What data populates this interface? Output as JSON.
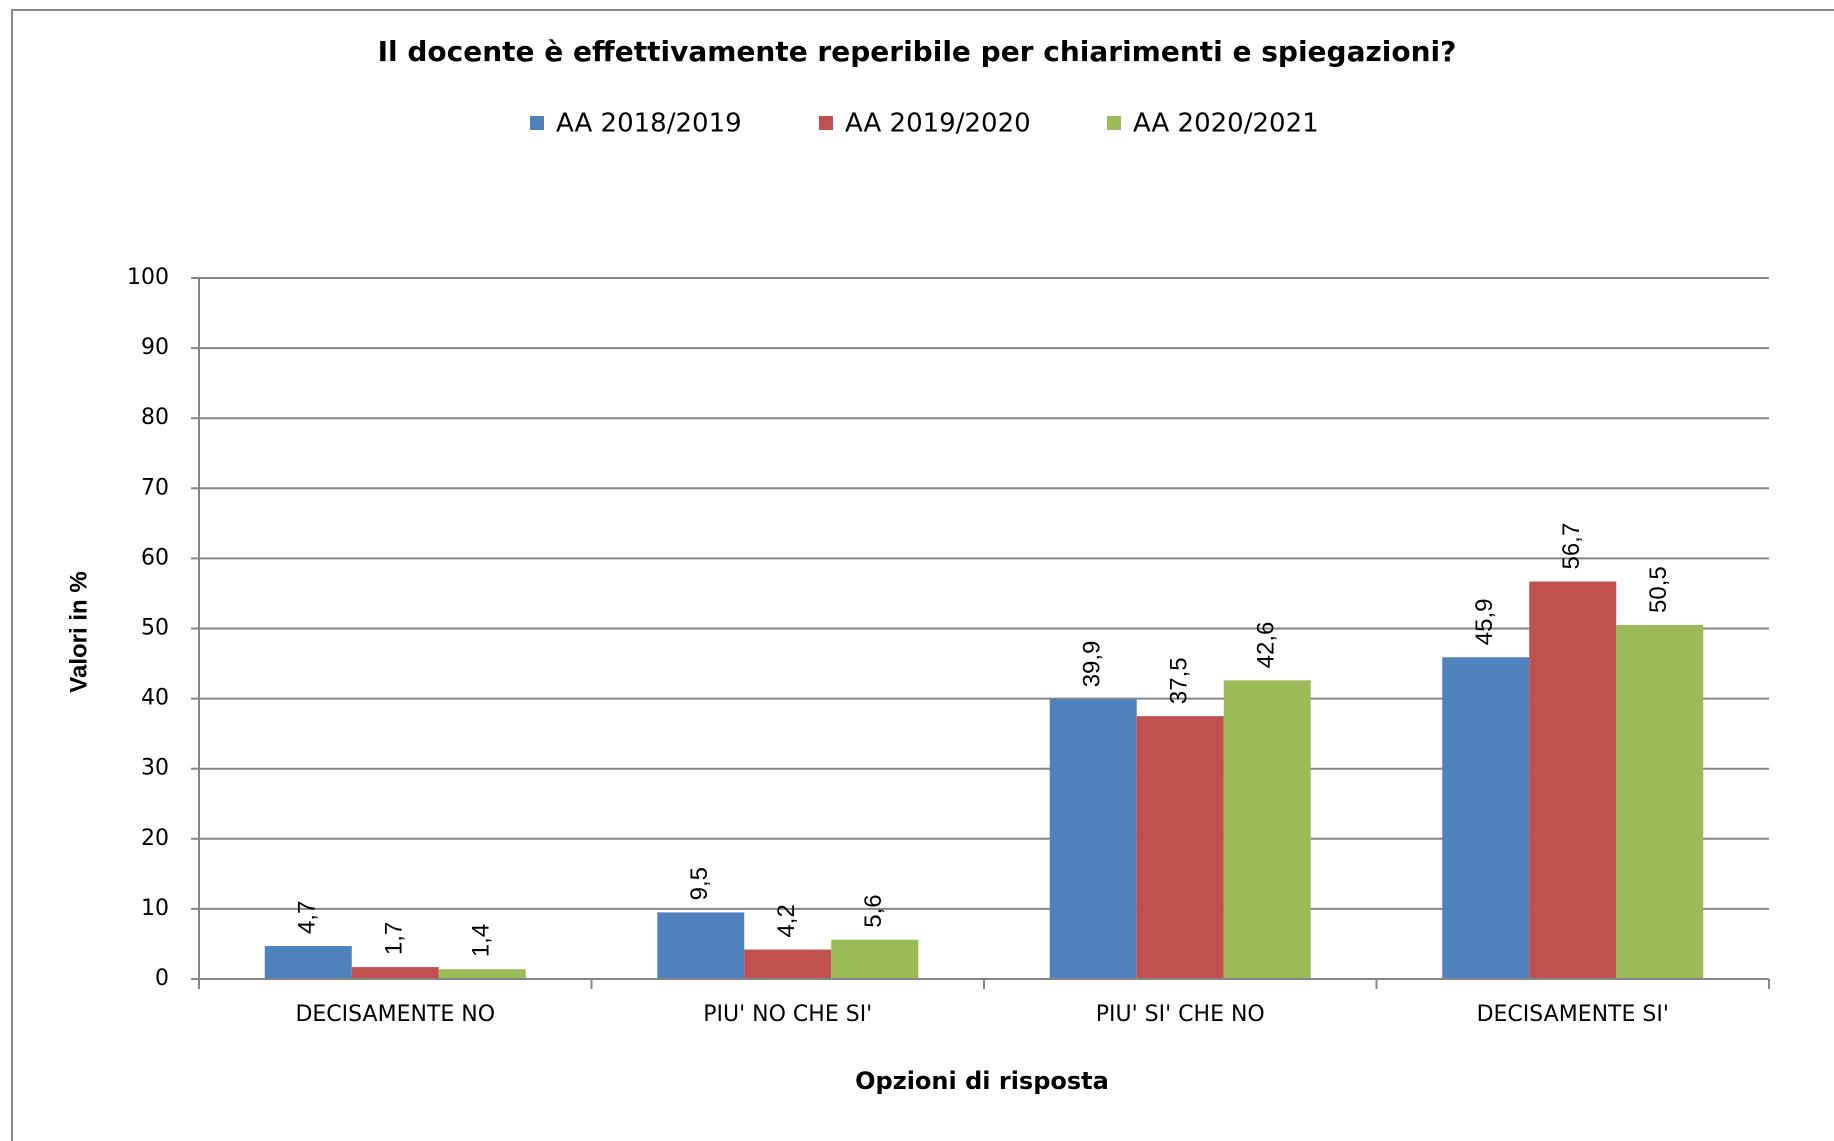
{
  "chart_data": {
    "type": "bar",
    "title": "Il docente è effettivamente reperibile per chiarimenti e spiegazioni?",
    "x_label": "Opzioni di risposta",
    "y_label": "Valori in %",
    "categories": [
      "DECISAMENTE NO",
      "PIU' NO CHE SI'",
      "PIU' SI' CHE NO",
      "DECISAMENTE SI'"
    ],
    "series": [
      {
        "name": "AA 2018/2019",
        "color": "#4f81bd",
        "values": [
          4.7,
          9.5,
          39.9,
          45.9
        ],
        "value_labels": [
          "4,7",
          "9,5",
          "39,9",
          "45,9"
        ]
      },
      {
        "name": "AA 2019/2020",
        "color": "#c0504d",
        "values": [
          1.7,
          4.2,
          37.5,
          56.7
        ],
        "value_labels": [
          "1,7",
          "4,2",
          "37,5",
          "56,7"
        ]
      },
      {
        "name": "AA 2020/2021",
        "color": "#9bbb59",
        "values": [
          1.4,
          5.6,
          42.6,
          50.5
        ],
        "value_labels": [
          "1,4",
          "5,6",
          "42,6",
          "50,5"
        ]
      }
    ],
    "ylim": [
      0,
      100
    ],
    "yticks": [
      0,
      10,
      20,
      30,
      40,
      50,
      60,
      70,
      80,
      90,
      100
    ],
    "grid": true,
    "legend": "top"
  }
}
